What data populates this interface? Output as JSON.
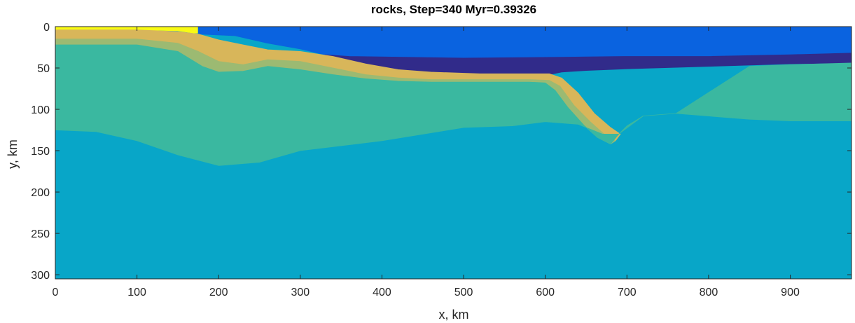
{
  "chart_data": {
    "type": "heatmap",
    "title": "rocks, Step=340 Myr=0.39326",
    "xlabel": "x, km",
    "ylabel": "y, km",
    "xlim": [
      0,
      975
    ],
    "ylim": [
      0,
      305
    ],
    "y_reversed": true,
    "grid": false,
    "xticks": [
      0,
      100,
      200,
      300,
      400,
      500,
      600,
      700,
      800,
      900
    ],
    "yticks": [
      0,
      50,
      100,
      150,
      200,
      250,
      300
    ],
    "colors": {
      "sticky_air": "#f9fa14",
      "water": "#0a63e0",
      "oceanic_sediments": "#312b8a",
      "continental_crust": "#d8b65a",
      "crust_transition": "#9cba72",
      "lithospheric_mantle": "#3ab8a0",
      "asthenosphere": "#08a6c8"
    },
    "layers": [
      {
        "color": "sticky_air",
        "top": [
          [
            0,
            0
          ],
          [
            275,
            0
          ]
        ],
        "bottom": [
          [
            0,
            4
          ],
          [
            100,
            4
          ],
          [
            150,
            5
          ],
          [
            170,
            8
          ],
          [
            200,
            7
          ],
          [
            230,
            5
          ],
          [
            265,
            2
          ],
          [
            275,
            0
          ]
        ]
      },
      {
        "color": "water",
        "top": [
          [
            175,
            0
          ],
          [
            975,
            0
          ]
        ],
        "bottom": [
          [
            175,
            9
          ],
          [
            220,
            11
          ],
          [
            260,
            20
          ],
          [
            300,
            27
          ],
          [
            330,
            34
          ],
          [
            360,
            36
          ],
          [
            500,
            38
          ],
          [
            620,
            37
          ],
          [
            700,
            36
          ],
          [
            800,
            36
          ],
          [
            900,
            34
          ],
          [
            975,
            32
          ]
        ]
      },
      {
        "color": "oceanic_sediments",
        "top": [
          [
            330,
            34
          ],
          [
            360,
            36
          ],
          [
            500,
            38
          ],
          [
            620,
            37
          ],
          [
            700,
            36
          ],
          [
            800,
            36
          ],
          [
            900,
            34
          ],
          [
            975,
            32
          ]
        ],
        "bottom": [
          [
            330,
            35
          ],
          [
            380,
            45
          ],
          [
            420,
            52
          ],
          [
            460,
            55
          ],
          [
            520,
            57
          ],
          [
            580,
            57
          ],
          [
            605,
            58
          ],
          [
            620,
            55
          ],
          [
            650,
            53
          ],
          [
            700,
            51
          ],
          [
            800,
            48
          ],
          [
            900,
            45
          ],
          [
            975,
            44
          ]
        ]
      },
      {
        "color": "continental_crust",
        "top": [
          [
            0,
            4
          ],
          [
            100,
            4
          ],
          [
            150,
            6
          ],
          [
            175,
            9
          ],
          [
            200,
            16
          ],
          [
            230,
            22
          ],
          [
            260,
            28
          ],
          [
            300,
            30
          ],
          [
            340,
            36
          ],
          [
            380,
            45
          ],
          [
            420,
            52
          ],
          [
            460,
            55
          ],
          [
            520,
            57
          ],
          [
            580,
            57
          ],
          [
            605,
            57
          ],
          [
            620,
            62
          ],
          [
            640,
            80
          ],
          [
            660,
            105
          ],
          [
            680,
            122
          ],
          [
            692,
            130
          ]
        ],
        "bottom": [
          [
            0,
            15
          ],
          [
            100,
            15
          ],
          [
            150,
            20
          ],
          [
            175,
            30
          ],
          [
            200,
            42
          ],
          [
            230,
            46
          ],
          [
            260,
            40
          ],
          [
            300,
            42
          ],
          [
            340,
            50
          ],
          [
            380,
            58
          ],
          [
            420,
            62
          ],
          [
            460,
            64
          ],
          [
            520,
            64
          ],
          [
            580,
            64
          ],
          [
            605,
            65
          ],
          [
            618,
            72
          ],
          [
            635,
            95
          ],
          [
            655,
            115
          ],
          [
            672,
            130
          ],
          [
            686,
            138
          ]
        ]
      },
      {
        "color": "crust_transition",
        "top": [
          [
            0,
            15
          ],
          [
            100,
            15
          ],
          [
            150,
            20
          ],
          [
            175,
            30
          ],
          [
            200,
            42
          ],
          [
            230,
            46
          ],
          [
            260,
            40
          ],
          [
            300,
            42
          ],
          [
            340,
            50
          ],
          [
            380,
            58
          ],
          [
            420,
            62
          ],
          [
            460,
            64
          ],
          [
            520,
            64
          ],
          [
            580,
            64
          ],
          [
            605,
            65
          ],
          [
            618,
            72
          ],
          [
            635,
            95
          ],
          [
            655,
            115
          ],
          [
            672,
            130
          ],
          [
            686,
            138
          ]
        ],
        "bottom": [
          [
            0,
            22
          ],
          [
            100,
            22
          ],
          [
            150,
            30
          ],
          [
            180,
            48
          ],
          [
            200,
            55
          ],
          [
            230,
            54
          ],
          [
            260,
            48
          ],
          [
            300,
            52
          ],
          [
            340,
            58
          ],
          [
            380,
            63
          ],
          [
            420,
            66
          ],
          [
            460,
            67
          ],
          [
            520,
            67
          ],
          [
            580,
            67
          ],
          [
            600,
            68
          ],
          [
            612,
            77
          ],
          [
            628,
            98
          ],
          [
            648,
            120
          ],
          [
            664,
            134
          ],
          [
            680,
            142
          ]
        ]
      },
      {
        "color": "lithospheric_mantle",
        "top": [
          [
            0,
            22
          ],
          [
            100,
            22
          ],
          [
            150,
            30
          ],
          [
            180,
            48
          ],
          [
            200,
            55
          ],
          [
            230,
            54
          ],
          [
            260,
            48
          ],
          [
            300,
            52
          ],
          [
            340,
            58
          ],
          [
            380,
            63
          ],
          [
            420,
            66
          ],
          [
            460,
            67
          ],
          [
            520,
            67
          ],
          [
            580,
            67
          ],
          [
            600,
            68
          ],
          [
            612,
            77
          ],
          [
            628,
            98
          ],
          [
            648,
            120
          ],
          [
            664,
            134
          ],
          [
            680,
            142
          ],
          [
            690,
            130
          ],
          [
            720,
            108
          ],
          [
            760,
            105
          ],
          [
            850,
            48
          ],
          [
            900,
            46
          ],
          [
            975,
            44
          ]
        ],
        "bottom": [
          [
            0,
            125
          ],
          [
            50,
            127
          ],
          [
            100,
            138
          ],
          [
            150,
            155
          ],
          [
            200,
            168
          ],
          [
            250,
            164
          ],
          [
            300,
            150
          ],
          [
            400,
            138
          ],
          [
            500,
            122
          ],
          [
            560,
            120
          ],
          [
            600,
            115
          ],
          [
            640,
            118
          ],
          [
            670,
            130
          ],
          [
            690,
            130
          ],
          [
            700,
            120
          ],
          [
            720,
            108
          ],
          [
            760,
            105
          ],
          [
            850,
            112
          ],
          [
            900,
            114
          ],
          [
            975,
            114
          ]
        ]
      }
    ]
  }
}
